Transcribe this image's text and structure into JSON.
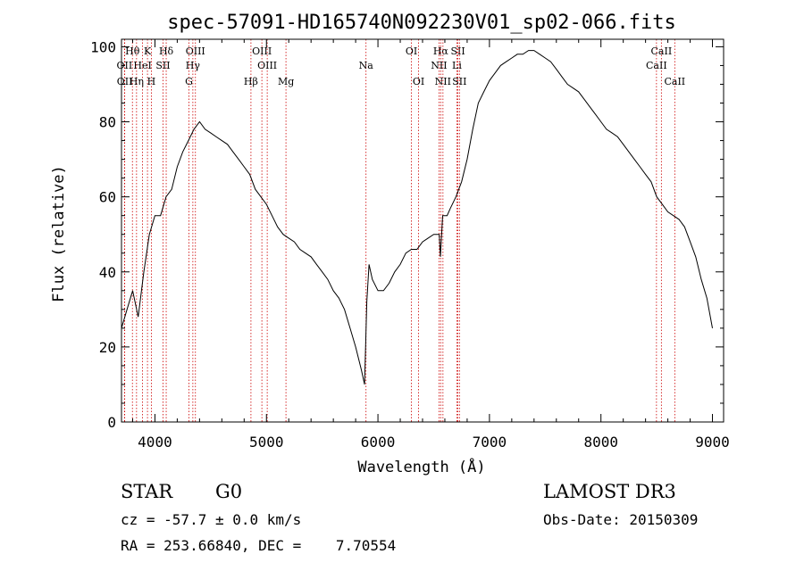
{
  "chart_data": {
    "type": "line",
    "title": "spec-57091-HD165740N092230V01_sp02-066.fits",
    "xlabel": "Wavelength (Å)",
    "ylabel": "Flux (relative)",
    "xlim": [
      3700,
      9100
    ],
    "ylim": [
      0,
      102
    ],
    "xticks": [
      4000,
      5000,
      6000,
      7000,
      8000,
      9000
    ],
    "yticks": [
      0,
      20,
      40,
      60,
      80,
      100
    ],
    "grid": false,
    "series": [
      {
        "x": [
          3700,
          3750,
          3800,
          3850,
          3900,
          3950,
          4000,
          4050,
          4100,
          4150,
          4200,
          4250,
          4300,
          4350,
          4400,
          4450,
          4500,
          4550,
          4600,
          4650,
          4700,
          4750,
          4800,
          4850,
          4900,
          4950,
          5000,
          5050,
          5100,
          5150,
          5200,
          5250,
          5300,
          5350,
          5400,
          5450,
          5500,
          5550,
          5600,
          5650,
          5700,
          5750,
          5800,
          5850,
          5880,
          5900,
          5920,
          5950,
          6000,
          6050,
          6100,
          6150,
          6200,
          6250,
          6300,
          6350,
          6400,
          6450,
          6500,
          6550,
          6560,
          6580,
          6620,
          6650,
          6700,
          6750,
          6800,
          6850,
          6900,
          6950,
          7000,
          7050,
          7100,
          7150,
          7200,
          7250,
          7300,
          7350,
          7400,
          7450,
          7500,
          7550,
          7600,
          7650,
          7700,
          7750,
          7800,
          7850,
          7900,
          7950,
          8000,
          8050,
          8100,
          8150,
          8200,
          8250,
          8300,
          8350,
          8400,
          8450,
          8500,
          8550,
          8600,
          8650,
          8700,
          8750,
          8800,
          8850,
          8900,
          8950,
          9000
        ],
        "values": [
          25,
          30,
          35,
          28,
          40,
          50,
          55,
          55,
          60,
          62,
          68,
          72,
          75,
          78,
          80,
          78,
          77,
          76,
          75,
          74,
          72,
          70,
          68,
          66,
          62,
          60,
          58,
          55,
          52,
          50,
          49,
          48,
          46,
          45,
          44,
          42,
          40,
          38,
          35,
          33,
          30,
          25,
          20,
          14,
          10,
          32,
          42,
          38,
          35,
          35,
          37,
          40,
          42,
          45,
          46,
          46,
          48,
          49,
          50,
          50,
          44,
          55,
          55,
          57,
          60,
          64,
          70,
          78,
          85,
          88,
          91,
          93,
          95,
          96,
          97,
          98,
          98,
          99,
          99,
          98,
          97,
          96,
          94,
          92,
          90,
          89,
          88,
          86,
          84,
          82,
          80,
          78,
          77,
          76,
          74,
          72,
          70,
          68,
          66,
          64,
          60,
          58,
          56,
          55,
          54,
          52,
          48,
          44,
          38,
          33,
          25
        ]
      }
    ],
    "lines": [
      {
        "label": "Hθ",
        "wl": 3798,
        "row": 0
      },
      {
        "label": "K",
        "wl": 3933,
        "row": 0
      },
      {
        "label": "Hδ",
        "wl": 4101,
        "row": 0
      },
      {
        "label": "OIII",
        "wl": 4363,
        "row": 0
      },
      {
        "label": "OIII",
        "wl": 4959,
        "row": 0
      },
      {
        "label": "Na",
        "wl": 5893,
        "row": 1
      },
      {
        "label": "OI",
        "wl": 6300,
        "row": 0
      },
      {
        "label": "Hα",
        "wl": 6563,
        "row": 0
      },
      {
        "label": "SII",
        "wl": 6717,
        "row": 0
      },
      {
        "label": "CaII",
        "wl": 8542,
        "row": 0
      },
      {
        "label": "OII",
        "wl": 3727,
        "row": 1
      },
      {
        "label": "HeI",
        "wl": 3889,
        "row": 1
      },
      {
        "label": "SII",
        "wl": 4072,
        "row": 1
      },
      {
        "label": "Hγ",
        "wl": 4340,
        "row": 1
      },
      {
        "label": "OIII",
        "wl": 5007,
        "row": 1
      },
      {
        "label": "NII",
        "wl": 6548,
        "row": 1
      },
      {
        "label": "Li",
        "wl": 6708,
        "row": 1
      },
      {
        "label": "CaII",
        "wl": 8498,
        "row": 1
      },
      {
        "label": "OII",
        "wl": 3729,
        "row": 2
      },
      {
        "label": "Hη",
        "wl": 3835,
        "row": 2
      },
      {
        "label": "H",
        "wl": 3968,
        "row": 2
      },
      {
        "label": "G",
        "wl": 4305,
        "row": 2
      },
      {
        "label": "Hβ",
        "wl": 4861,
        "row": 2
      },
      {
        "label": "Mg",
        "wl": 5175,
        "row": 2
      },
      {
        "label": "OI",
        "wl": 6364,
        "row": 2
      },
      {
        "label": "NII",
        "wl": 6583,
        "row": 2
      },
      {
        "label": "SII",
        "wl": 6731,
        "row": 2
      },
      {
        "label": "CaII",
        "wl": 8662,
        "row": 2
      }
    ]
  },
  "info": {
    "object_class": "STAR",
    "subclass": "G0",
    "survey": "LAMOST DR3",
    "cz": "cz = -57.7 ± 0.0 km/s",
    "obs_date": "Obs-Date: 20150309",
    "coords": "RA = 253.66840, DEC =    7.70554"
  },
  "colors": {
    "spectrum": "#000000",
    "line_marker": "#cc0000",
    "axes": "#000000",
    "background": "#ffffff"
  }
}
